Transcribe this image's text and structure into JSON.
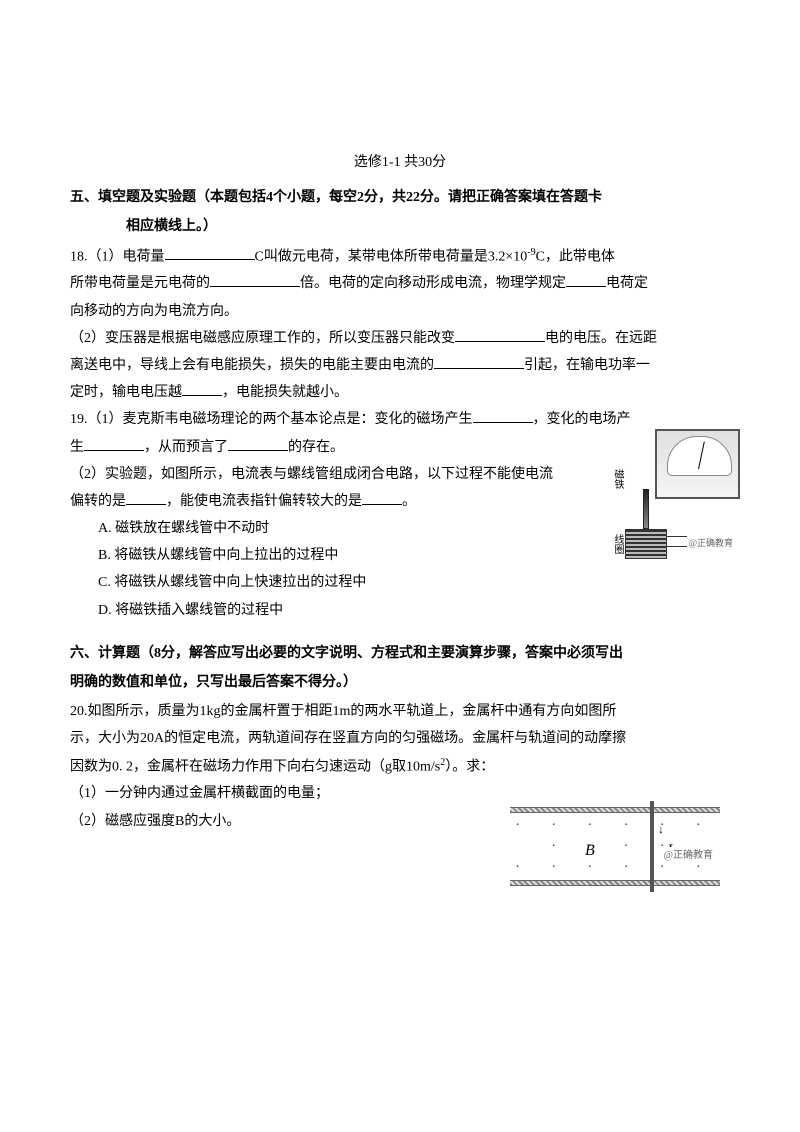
{
  "title": "选修1-1  共30分",
  "section5": {
    "header_line1": "五、填空题及实验题（本题包括4个小题，每空2分，共22分。请把正确答案填在答题卡",
    "header_line2": "相应横线上。）",
    "q18": {
      "part1_a": "18.（1）电荷量",
      "part1_b": "C叫做元电荷，某带电体所带电荷量是3.2×10",
      "exp": "-9",
      "part1_c": "C，此带电体",
      "part1_d": "所带电荷量是元电荷的",
      "part1_e": "倍。电荷的定向移动形成电流，物理学规定",
      "part1_f": "电荷定",
      "part1_g": "向移动的方向为电流方向。",
      "part2_a": "（2）变压器是根据电磁感应原理工作的，所以变压器只能改变",
      "part2_b": "电的电压。在远距",
      "part2_c": "离送电中，导线上会有电能损失，损失的电能主要由电流的",
      "part2_d": "引起，在输电功率一",
      "part2_e": "定时，输电电压越",
      "part2_f": "，电能损失就越小。"
    },
    "q19": {
      "part1_a": "19.（1）麦克斯韦电磁场理论的两个基本论点是：变化的磁场产生",
      "part1_b": "，变化的电场产",
      "part1_c": "生",
      "part1_d": "，从而预言了",
      "part1_e": "的存在。",
      "part2_a": "（2）实验题，如图所示，电流表与螺线管组成闭合电路，以下过程不能使电流",
      "part2_b": "偏转的是",
      "part2_c": "，能使电流表指针偏转较大的是",
      "part2_d": "。",
      "optA": "A. 磁铁放在螺线管中不动时",
      "optB": "B. 将磁铁从螺线管中向上拉出的过程中",
      "optC": "C. 将磁铁从螺线管中向上快速拉出的过程中",
      "optD": "D. 将磁铁插入螺线管的过程中",
      "label_magnet": "磁铁",
      "label_coil": "线圈",
      "watermark": "@正确教育"
    }
  },
  "section6": {
    "header_line1": "六、计算题（8分，解答应写出必要的文字说明、方程式和主要演算步骤，答案中必须写出",
    "header_line2": "明确的数值和单位，只写出最后答案不得分。）",
    "q20": {
      "line1": "20.如图所示，质量为1kg的金属杆置于相距1m的两水平轨道上，金属杆中通有方向如图所",
      "line2": "示，大小为20A的恒定电流，两轨道间存在竖直方向的匀强磁场。金属杆与轨道间的动摩擦",
      "line3a": "因数为0. 2，金属杆在磁场力作用下向右匀速运动（g取10m/s",
      "line3_exp": "2",
      "line3b": "）。求：",
      "sub1": "（1）一分钟内通过金属杆横截面的电量；",
      "sub2": "（2）磁感应强度B的大小。",
      "label_B": "B",
      "label_I": "I",
      "watermark": "@正确教育"
    }
  }
}
